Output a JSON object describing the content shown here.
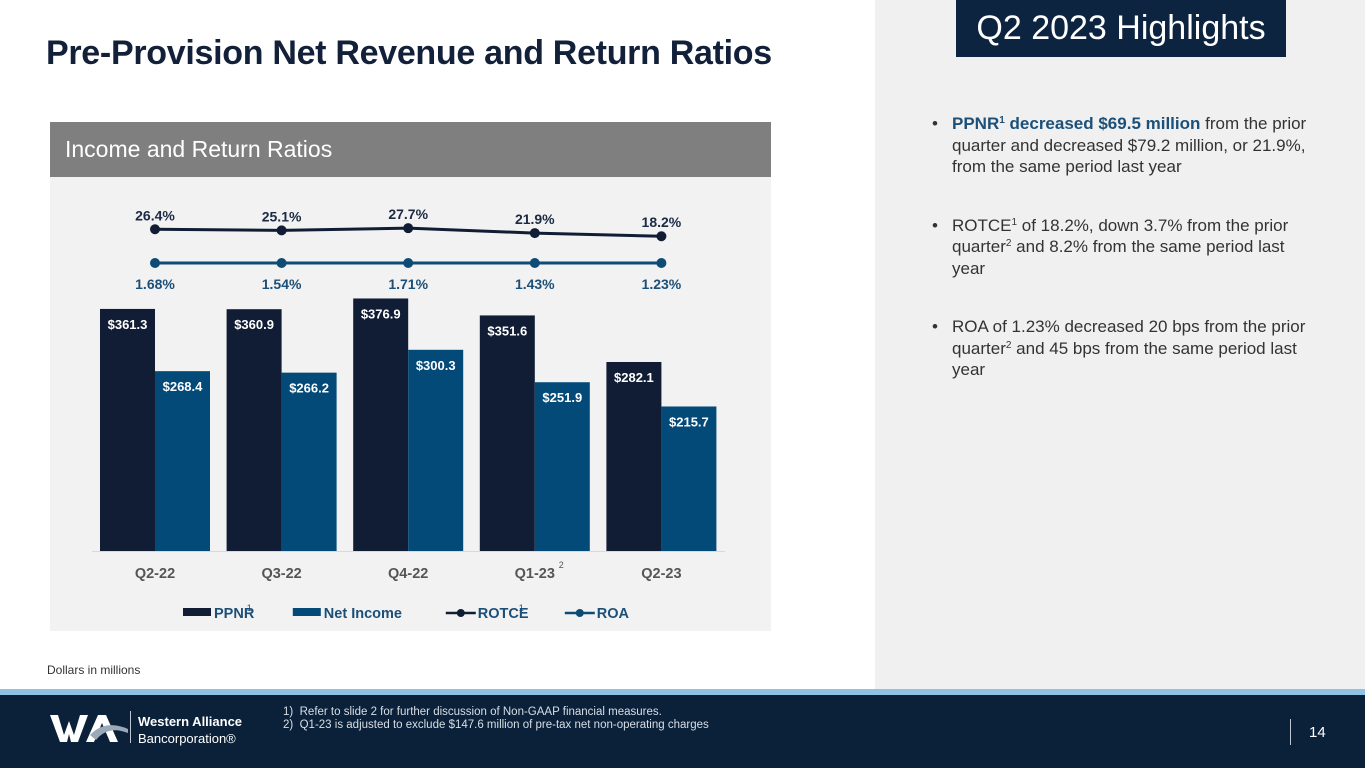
{
  "page": {
    "title": "Pre-Provision Net Revenue and Return Ratios",
    "units_note": "Dollars in millions",
    "page_number": "14"
  },
  "chart_panel": {
    "header": "Income and Return Ratios"
  },
  "chart_data": {
    "type": "bar",
    "title": "Income and Return Ratios",
    "xlabel": "",
    "ylabel": "",
    "units": "Dollars in millions",
    "categories": [
      "Q2-22",
      "Q3-22",
      "Q4-22",
      "Q1-23",
      "Q2-23"
    ],
    "category_superscripts": [
      "",
      "",
      "",
      "2",
      ""
    ],
    "series": [
      {
        "name": "PPNR",
        "superscript": "1",
        "kind": "bar",
        "color": "#111d35",
        "values": [
          361.3,
          360.9,
          376.9,
          351.6,
          282.1
        ],
        "labels": [
          "$361.3",
          "$360.9",
          "$376.9",
          "$351.6",
          "$282.1"
        ]
      },
      {
        "name": "Net Income",
        "superscript": "",
        "kind": "bar",
        "color": "#034a78",
        "values": [
          268.4,
          266.2,
          300.3,
          251.9,
          215.7
        ],
        "labels": [
          "$268.4",
          "$266.2",
          "$300.3",
          "$251.9",
          "$215.7"
        ]
      },
      {
        "name": "ROTCE",
        "superscript": "1",
        "kind": "line",
        "color": "#111d35",
        "values": [
          26.4,
          25.1,
          27.7,
          21.9,
          18.2
        ],
        "labels": [
          "26.4%",
          "25.1%",
          "27.7%",
          "21.9%",
          "18.2%"
        ]
      },
      {
        "name": "ROA",
        "superscript": "",
        "kind": "line",
        "color": "#0e4c75",
        "values": [
          1.68,
          1.54,
          1.71,
          1.43,
          1.23
        ],
        "labels": [
          "1.68%",
          "1.54%",
          "1.71%",
          "1.43%",
          "1.23%"
        ]
      }
    ],
    "ylim": [
      0,
      400
    ],
    "grid": false,
    "legend_position": "bottom"
  },
  "highlights": {
    "title": "Q2 2023 Highlights",
    "bullets": [
      {
        "bold": "PPNR",
        "bold_sup": "1",
        "bold_rest": " decreased $69.5 million",
        "text": " from the prior quarter and decreased $79.2 million, or 21.9%, from the same period last year"
      },
      {
        "pre": "ROTCE",
        "pre_sup": "1",
        "text_a": " of 18.2%, down 3.7% from the prior quarter",
        "sup_a": "2",
        "text_b": " and 8.2% from the same period last year"
      },
      {
        "pre": "ROA of 1.23% decreased 20 bps from the prior quarter",
        "sup_a": "2",
        "text_b": " and 45 bps from the same period last year"
      }
    ]
  },
  "footer": {
    "brand_name": "Western Alliance",
    "brand_sub": "Bancorporation®",
    "footnotes": [
      "1)  Refer to slide 2 for further discussion of Non-GAAP financial measures.",
      "2)  Q1-23 is adjusted to exclude $147.6 million of pre-tax net non-operating charges"
    ]
  }
}
